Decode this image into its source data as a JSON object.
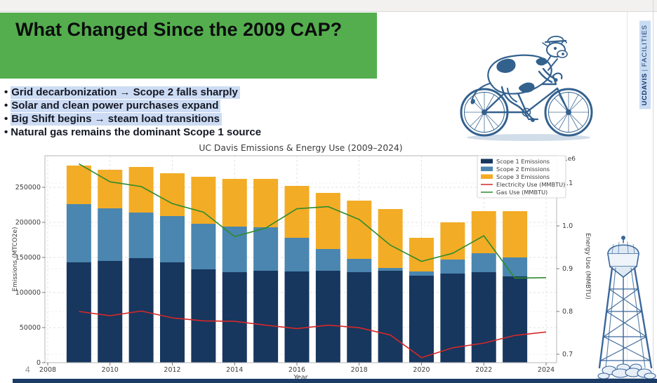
{
  "slide": {
    "page_number": "4",
    "title": "What Changed Since the 2009 CAP?",
    "bullets": [
      {
        "text": "Grid decarbonization → Scope 2 falls sharply",
        "highlighted": true
      },
      {
        "text": "Solar and clean power purchases expand",
        "highlighted": true
      },
      {
        "text": "Big Shift begins → steam load transitions",
        "highlighted": true
      },
      {
        "text": "Natural gas remains the dominant Scope 1 source",
        "highlighted": false
      }
    ]
  },
  "badge": {
    "university_prefix": "UC",
    "university_name": "DAVIS",
    "separator": "|",
    "division": "FACILITIES"
  },
  "colors": {
    "banner_green": "#54ae4e",
    "highlight_blue": "#cddcf4",
    "footer_navy": "#1c3c67",
    "badge_bg": "#c9dcf2",
    "badge_text": "#14366e",
    "illustration_blue": "#33618e"
  },
  "chart_data": {
    "type": "bar",
    "subtype": "stacked-bars-with-twin-axis-lines",
    "title": "UC Davis Emissions & Energy Use (2009–2024)",
    "xlabel": "Year",
    "ylabel_left": "Emissions (MTCO2e)",
    "ylabel_right": "Energy Use (MMBTU)",
    "right_axis_multiplier": "1e6",
    "grid": true,
    "legend_position": "upper right",
    "x_ticks": [
      2008,
      2010,
      2012,
      2014,
      2016,
      2018,
      2020,
      2022,
      2024
    ],
    "left_ticks": [
      0,
      50000,
      100000,
      150000,
      200000,
      250000
    ],
    "right_ticks": [
      0.7,
      0.8,
      0.9,
      1.0,
      1.1
    ],
    "ylim_left": [
      0,
      295000
    ],
    "ylim_right": [
      0.68,
      1.165
    ],
    "bar_years": [
      2009,
      2010,
      2011,
      2012,
      2013,
      2014,
      2015,
      2016,
      2017,
      2018,
      2019,
      2020,
      2021,
      2022,
      2023
    ],
    "line_years": [
      2009,
      2010,
      2011,
      2012,
      2013,
      2014,
      2015,
      2016,
      2017,
      2018,
      2019,
      2020,
      2021,
      2022,
      2023,
      2024
    ],
    "series": [
      {
        "name": "Scope 1 Emissions",
        "type": "bar",
        "axis": "left",
        "color": "#17375e",
        "values": [
          143000,
          145000,
          149000,
          143000,
          133000,
          129000,
          131000,
          130000,
          131000,
          129000,
          131000,
          124000,
          127000,
          129000,
          123000
        ]
      },
      {
        "name": "Scope 2 Emissions",
        "type": "bar",
        "axis": "left",
        "color": "#4a86af",
        "values": [
          83000,
          75000,
          65000,
          66000,
          65000,
          65000,
          62000,
          48000,
          31000,
          19000,
          4000,
          6000,
          20000,
          27000,
          27000
        ]
      },
      {
        "name": "Scope 3 Emissions",
        "type": "bar",
        "axis": "left",
        "color": "#f3ac25",
        "values": [
          55000,
          55000,
          65000,
          61000,
          67000,
          68000,
          69000,
          74000,
          80000,
          83000,
          84000,
          48000,
          53000,
          60000,
          66000
        ]
      },
      {
        "name": "Electricity Use (MMBTU)",
        "type": "line",
        "axis": "right",
        "color": "#d62728",
        "values": [
          0.8,
          0.79,
          0.801,
          0.785,
          0.778,
          0.777,
          0.768,
          0.76,
          0.768,
          0.762,
          0.745,
          0.692,
          0.715,
          0.726,
          0.744,
          0.752
        ]
      },
      {
        "name": "Gas Use (MMBTU)",
        "type": "line",
        "axis": "right",
        "color": "#2e8b2e",
        "values": [
          1.145,
          1.103,
          1.092,
          1.052,
          1.032,
          0.975,
          0.995,
          1.04,
          1.045,
          1.015,
          0.955,
          0.917,
          0.936,
          0.977,
          0.878,
          0.879
        ]
      }
    ]
  }
}
